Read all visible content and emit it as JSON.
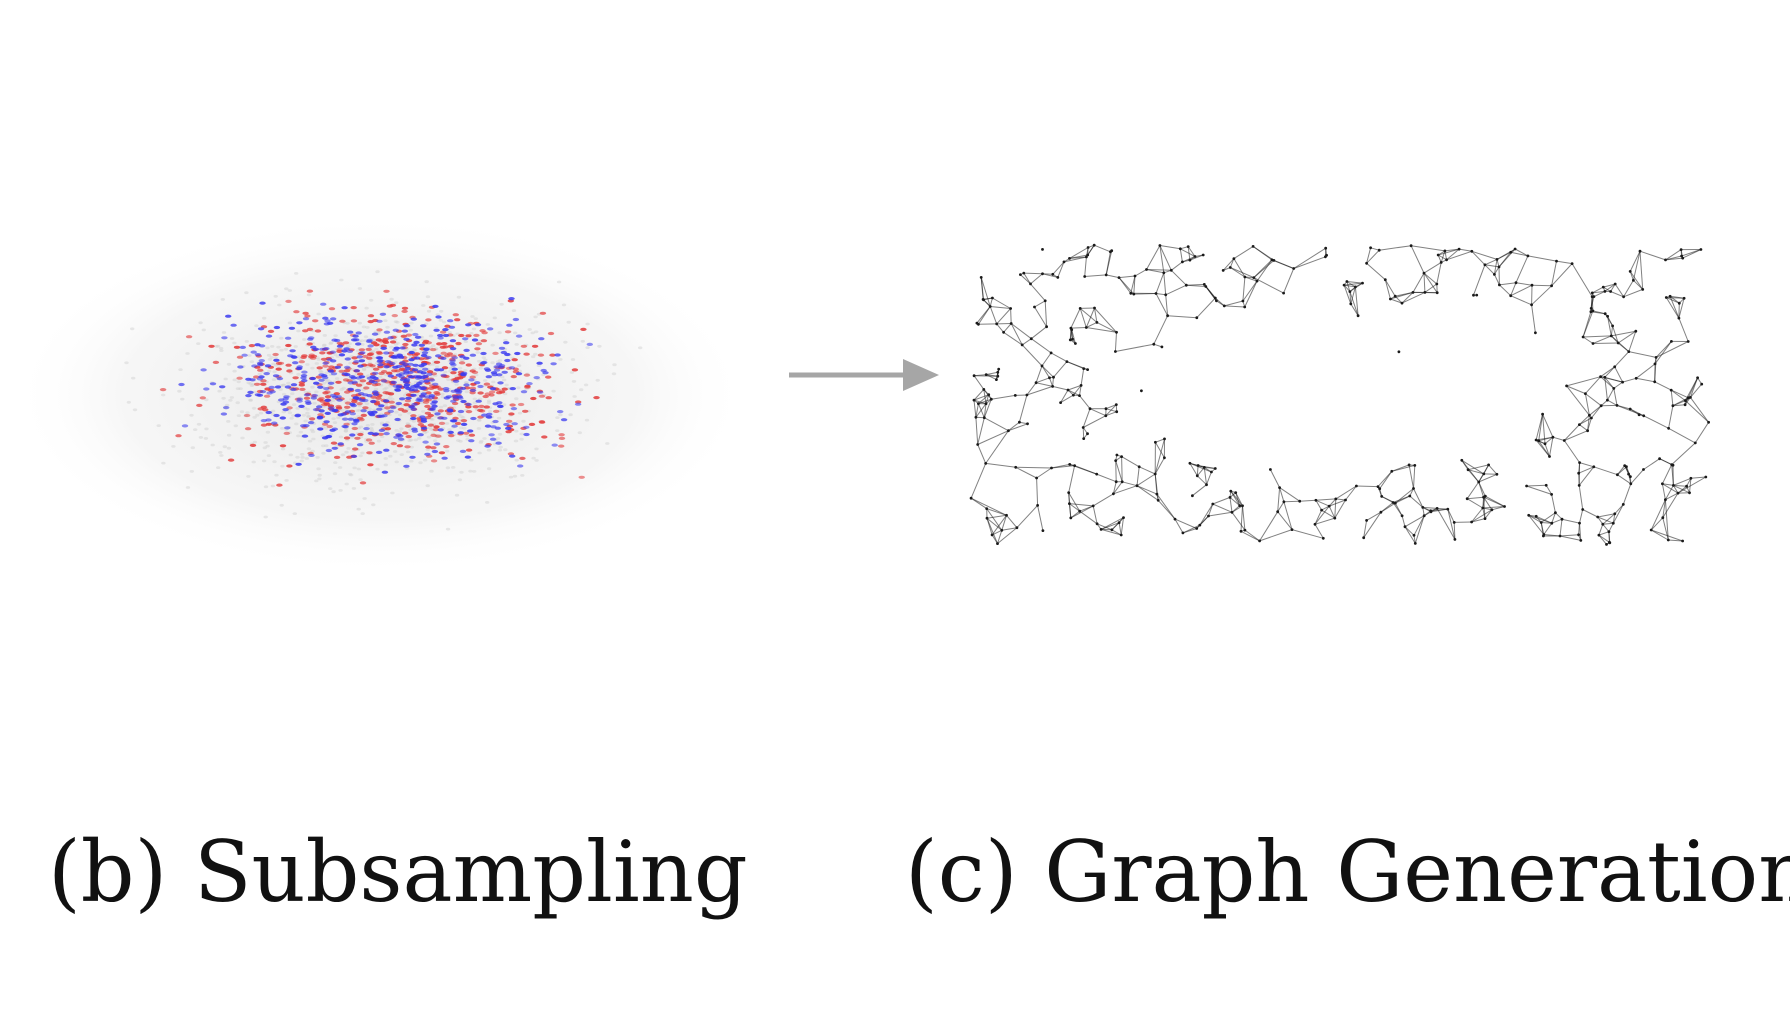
{
  "panels": [
    {
      "id": "b",
      "caption": "(b) Subsampling",
      "point_colors": {
        "background": "#cfcfcf",
        "positive": "#e23b3b",
        "negative": "#3b3bf0"
      }
    },
    {
      "id": "c",
      "caption": "(c) Graph Generation",
      "edge_color": "#1a1a1a"
    }
  ],
  "arrow_color": "#a6a6a6"
}
